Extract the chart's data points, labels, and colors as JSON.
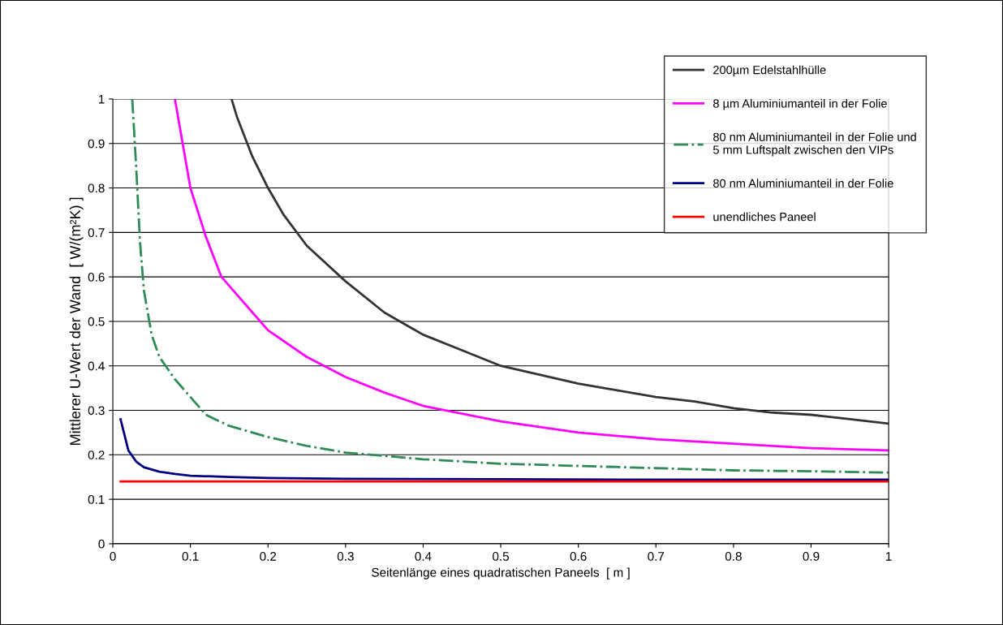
{
  "chart_data": {
    "type": "line",
    "xlabel": "Seitenlänge eines quadratischen Paneels  [ m ]",
    "ylabel": "Mittlerer U-Wert der Wand  [ W/(m²K) ]",
    "xlim": [
      0,
      1
    ],
    "xticks": [
      0,
      0.1,
      0.2,
      0.3,
      0.4,
      0.5,
      0.6,
      0.7,
      0.8,
      0.9,
      1
    ],
    "ylim": [
      0,
      1
    ],
    "yticks": [
      0,
      0.1,
      0.2,
      0.3,
      0.4,
      0.5,
      0.6,
      0.7,
      0.8,
      0.9,
      1
    ],
    "grid": "y",
    "legend": "top right",
    "series": [
      {
        "name": "200µm Edelstahlhülle",
        "color": "#333333",
        "line_style": "solid",
        "x": [
          0.153,
          0.16,
          0.18,
          0.2,
          0.22,
          0.25,
          0.3,
          0.35,
          0.4,
          0.45,
          0.5,
          0.55,
          0.6,
          0.65,
          0.7,
          0.75,
          0.8,
          0.85,
          0.9,
          0.95,
          1.0
        ],
        "values": [
          1,
          0.96,
          0.87,
          0.8,
          0.74,
          0.67,
          0.59,
          0.52,
          0.47,
          0.435,
          0.4,
          0.38,
          0.36,
          0.345,
          0.33,
          0.32,
          0.305,
          0.295,
          0.29,
          0.28,
          0.27
        ]
      },
      {
        "name": "8 µm Aluminiumanteil in der Folie",
        "color": "#ff00ff",
        "line_style": "solid",
        "x": [
          0.08,
          0.1,
          0.12,
          0.14,
          0.16,
          0.18,
          0.2,
          0.25,
          0.3,
          0.35,
          0.4,
          0.5,
          0.6,
          0.7,
          0.8,
          0.9,
          1.0
        ],
        "values": [
          1,
          0.8,
          0.69,
          0.6,
          0.56,
          0.52,
          0.48,
          0.42,
          0.375,
          0.34,
          0.31,
          0.275,
          0.25,
          0.235,
          0.225,
          0.215,
          0.21
        ]
      },
      {
        "name": "80 nm Aluminiumanteil in der Folie und\n5 mm Luftspalt zwischen den VIPs",
        "color": "#2e8b57",
        "line_style": "dashdot",
        "x": [
          0.025,
          0.03,
          0.035,
          0.04,
          0.05,
          0.06,
          0.08,
          0.1,
          0.12,
          0.15,
          0.2,
          0.25,
          0.3,
          0.4,
          0.5,
          0.6,
          0.7,
          0.8,
          0.9,
          1.0
        ],
        "values": [
          1,
          0.85,
          0.68,
          0.57,
          0.47,
          0.42,
          0.37,
          0.33,
          0.29,
          0.265,
          0.24,
          0.22,
          0.205,
          0.19,
          0.18,
          0.175,
          0.17,
          0.165,
          0.163,
          0.16
        ]
      },
      {
        "name": "80 nm Aluminiumanteil in der Folie",
        "color": "#000080",
        "line_style": "solid",
        "x": [
          0.01,
          0.02,
          0.03,
          0.04,
          0.06,
          0.08,
          0.1,
          0.15,
          0.2,
          0.3,
          0.5,
          0.7,
          1.0
        ],
        "values": [
          0.28,
          0.21,
          0.185,
          0.172,
          0.162,
          0.157,
          0.153,
          0.15,
          0.148,
          0.146,
          0.145,
          0.144,
          0.144
        ]
      },
      {
        "name": "unendliches Paneel",
        "color": "#ff0000",
        "line_style": "solid",
        "x": [
          0.01,
          1.0
        ],
        "values": [
          0.14,
          0.14
        ]
      }
    ]
  }
}
